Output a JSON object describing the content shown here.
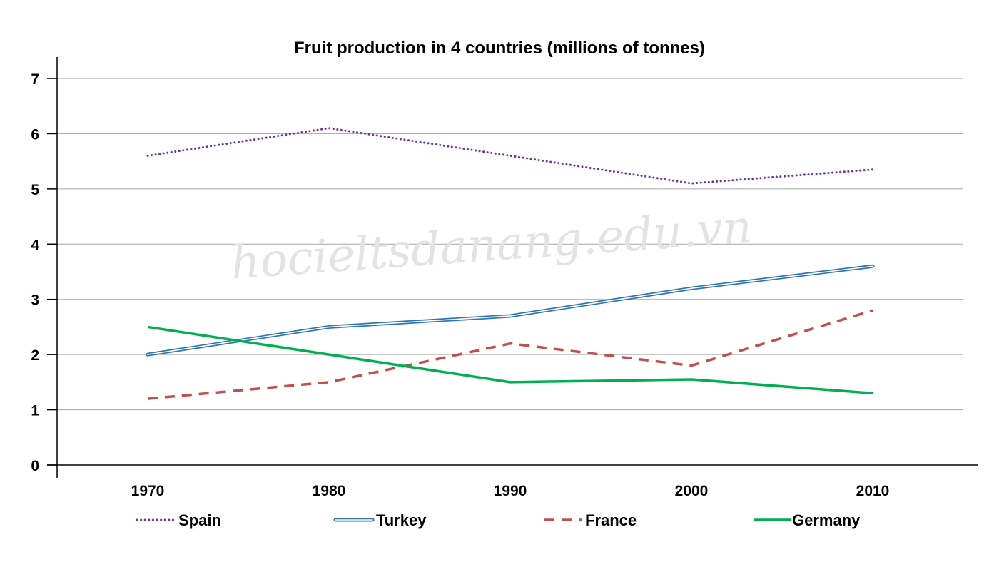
{
  "chart_data": {
    "type": "line",
    "title": "Fruit production in 4 countries (millions of tonnes)",
    "xlabel": "",
    "ylabel": "",
    "x": [
      "1970",
      "1980",
      "1990",
      "2000",
      "2010"
    ],
    "ylim": [
      0,
      7
    ],
    "yticks": [
      0,
      1,
      2,
      3,
      4,
      5,
      6,
      7
    ],
    "grid": true,
    "legend_position": "bottom",
    "series": [
      {
        "name": "Spain",
        "values": [
          5.6,
          6.1,
          5.6,
          5.1,
          5.35
        ],
        "color": "#7030a0",
        "style": "dotted"
      },
      {
        "name": "Turkey",
        "values": [
          2.0,
          2.5,
          2.7,
          3.2,
          3.6
        ],
        "color": "#2e75b6",
        "style": "double"
      },
      {
        "name": "France",
        "values": [
          1.2,
          1.5,
          2.2,
          1.8,
          2.8
        ],
        "color": "#c0504d",
        "style": "dashed"
      },
      {
        "name": "Germany",
        "values": [
          2.5,
          2.0,
          1.5,
          1.55,
          1.3
        ],
        "color": "#00b050",
        "style": "solid"
      }
    ]
  },
  "watermark": "hocieltsdanang.edu.vn"
}
